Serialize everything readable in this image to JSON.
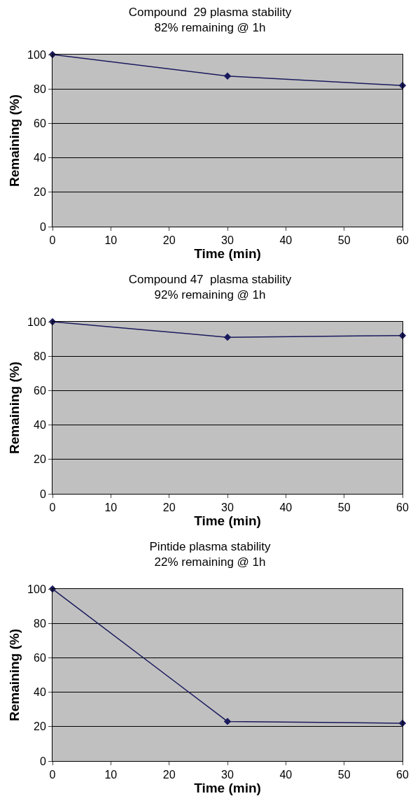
{
  "chart_data": [
    {
      "type": "line",
      "title": "Compound  29 plasma stability",
      "subtitle": "82% remaining @ 1h",
      "xlabel": "Time (min)",
      "ylabel": "Remaining (%)",
      "x": [
        0,
        30,
        60
      ],
      "series": [
        {
          "color": "#1a1a5e",
          "values": [
            100,
            87.5,
            82
          ]
        }
      ],
      "xlim": [
        0,
        60
      ],
      "xticks": [
        0,
        10,
        20,
        30,
        40,
        50,
        60
      ],
      "ylim": [
        0,
        100
      ],
      "yticks": [
        0,
        20,
        40,
        60,
        80,
        100
      ],
      "grid": "y",
      "marker": "diamond",
      "line_style": "solid"
    },
    {
      "type": "line",
      "title": "Compound 47  plasma stability",
      "subtitle": "92% remaining @ 1h",
      "xlabel": "Time (min)",
      "ylabel": "Remaining (%)",
      "x": [
        0,
        30,
        60
      ],
      "series": [
        {
          "color": "#1a1a5e",
          "values": [
            100,
            91,
            92
          ]
        }
      ],
      "xlim": [
        0,
        60
      ],
      "xticks": [
        0,
        10,
        20,
        30,
        40,
        50,
        60
      ],
      "ylim": [
        0,
        100
      ],
      "yticks": [
        0,
        20,
        40,
        60,
        80,
        100
      ],
      "grid": "y",
      "marker": "diamond",
      "line_style": "solid"
    },
    {
      "type": "line",
      "title": "Pintide plasma stability",
      "subtitle": "22% remaining @ 1h",
      "xlabel": "Time (min)",
      "ylabel": "Remaining (%)",
      "x": [
        0,
        30,
        60
      ],
      "series": [
        {
          "color": "#1a1a5e",
          "values": [
            100,
            23,
            22
          ]
        }
      ],
      "xlim": [
        0,
        60
      ],
      "xticks": [
        0,
        10,
        20,
        30,
        40,
        50,
        60
      ],
      "ylim": [
        0,
        100
      ],
      "yticks": [
        0,
        20,
        40,
        60,
        80,
        100
      ],
      "grid": "y",
      "marker": "diamond",
      "line_style": "solid"
    }
  ]
}
